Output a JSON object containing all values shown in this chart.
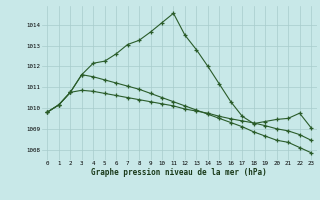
{
  "title": "Graphe pression niveau de la mer (hPa)",
  "background_color": "#c8e8e8",
  "grid_color": "#a8cccc",
  "line_color": "#2a5c2a",
  "x_min": -0.5,
  "x_max": 23.5,
  "y_min": 1007.5,
  "y_max": 1014.9,
  "line1_y": [
    1009.8,
    1010.15,
    1010.75,
    1011.6,
    1012.15,
    1012.25,
    1012.6,
    1013.05,
    1013.25,
    1013.65,
    1014.1,
    1014.55,
    1013.5,
    1012.8,
    1012.0,
    1011.15,
    1010.3,
    1009.6,
    1009.25,
    1009.35,
    1009.45,
    1009.5,
    1009.75,
    1009.05
  ],
  "line2_y": [
    1009.8,
    1010.15,
    1010.75,
    1011.6,
    1011.5,
    1011.35,
    1011.2,
    1011.05,
    1010.9,
    1010.7,
    1010.5,
    1010.3,
    1010.1,
    1009.9,
    1009.7,
    1009.5,
    1009.3,
    1009.1,
    1008.85,
    1008.65,
    1008.45,
    1008.35,
    1008.1,
    1007.85
  ],
  "line3_y": [
    1009.8,
    1010.15,
    1010.75,
    1010.85,
    1010.8,
    1010.7,
    1010.6,
    1010.5,
    1010.4,
    1010.3,
    1010.2,
    1010.1,
    1009.95,
    1009.85,
    1009.75,
    1009.6,
    1009.48,
    1009.38,
    1009.28,
    1009.15,
    1009.0,
    1008.9,
    1008.72,
    1008.45
  ],
  "yticks": [
    1008,
    1009,
    1010,
    1011,
    1012,
    1013,
    1014
  ],
  "xticks": [
    0,
    1,
    2,
    3,
    4,
    5,
    6,
    7,
    8,
    9,
    10,
    11,
    12,
    13,
    14,
    15,
    16,
    17,
    18,
    19,
    20,
    21,
    22,
    23
  ]
}
